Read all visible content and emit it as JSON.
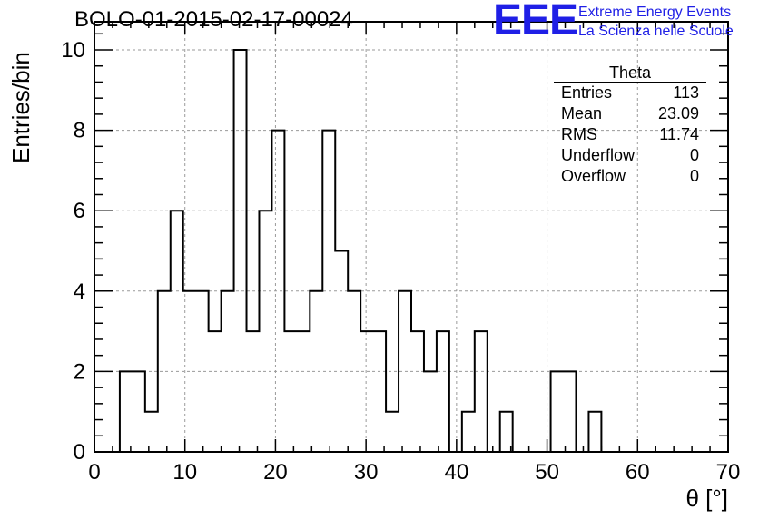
{
  "title": "BOLO-01-2015-02-17-00024",
  "logo": {
    "mark": "EEE",
    "line1": "Extreme Energy Events",
    "line2": "La Scienza nelle Scuole",
    "color": "#1f1fe6"
  },
  "stats_box": {
    "name": "Theta",
    "rows": [
      {
        "label": "Entries",
        "value": "113"
      },
      {
        "label": "Mean",
        "value": "23.09"
      },
      {
        "label": "RMS",
        "value": "11.74"
      },
      {
        "label": "Underflow",
        "value": "0"
      },
      {
        "label": "Overflow",
        "value": "0"
      }
    ]
  },
  "chart_data": {
    "type": "bar",
    "style": "step-histogram",
    "title": "BOLO-01-2015-02-17-00024",
    "xlabel": "θ [°]",
    "ylabel": "Entries/bin",
    "xlim": [
      0,
      70
    ],
    "ylim": [
      0,
      10.7
    ],
    "bin_width": 1.4,
    "x_ticks": [
      "0",
      "10",
      "20",
      "30",
      "40",
      "50",
      "60",
      "70"
    ],
    "y_ticks": [
      "0",
      "2",
      "4",
      "6",
      "8",
      "10"
    ],
    "x_tick_values": [
      0,
      10,
      20,
      30,
      40,
      50,
      60,
      70
    ],
    "y_tick_values": [
      0,
      2,
      4,
      6,
      8,
      10
    ],
    "grid": true,
    "bin_edges_start": 0,
    "values": [
      0,
      0,
      2,
      2,
      1,
      4,
      6,
      4,
      4,
      3,
      4,
      10,
      3,
      6,
      8,
      3,
      3,
      4,
      8,
      5,
      4,
      3,
      3,
      1,
      4,
      3,
      2,
      3,
      0,
      1,
      3,
      0,
      1,
      0,
      0,
      0,
      2,
      2,
      0,
      1,
      0,
      0,
      0,
      0,
      0,
      0,
      0,
      0,
      0,
      0
    ],
    "line_color": "#000000",
    "grid_color": "#9a9a9a"
  }
}
